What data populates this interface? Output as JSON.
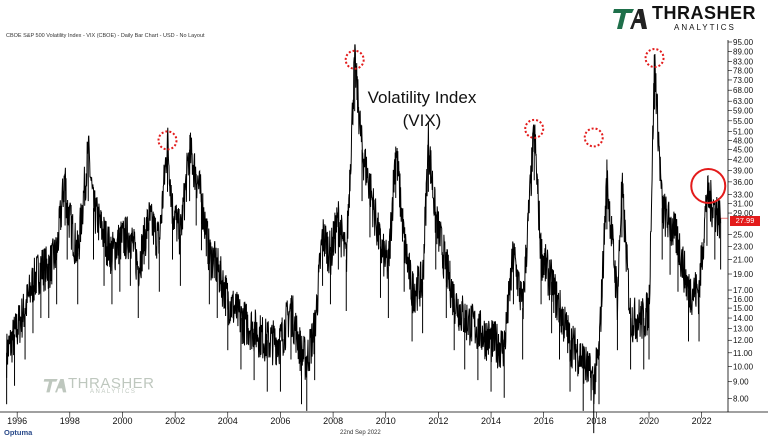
{
  "header": {
    "text": "CBOE S&P 500 Volatility Index - VIX (CBOE) - Daily Bar Chart - USD - No Layout"
  },
  "logo": {
    "word": "THRASHER",
    "sub": "ANALYTICS"
  },
  "watermark": {
    "word": "THRASHER",
    "sub": "ANALYTICS"
  },
  "footer": {
    "date": "22nd Sep 2022",
    "brand": "Optuma"
  },
  "last_value_label": "27.99",
  "chart_data": {
    "type": "line",
    "title": "Volatility Index",
    "subtitle": "(VIX)",
    "y_scale": "log",
    "ylim": [
      7.5,
      95
    ],
    "xlim": [
      1995.5,
      2023.0
    ],
    "y_ticks": [
      "95.00",
      "89.00",
      "83.00",
      "78.00",
      "73.00",
      "68.00",
      "63.00",
      "59.00",
      "55.00",
      "51.00",
      "48.00",
      "45.00",
      "42.00",
      "39.00",
      "36.00",
      "33.00",
      "31.00",
      "29.00",
      "25.00",
      "23.00",
      "21.00",
      "19.00",
      "17.00",
      "16.00",
      "15.00",
      "14.00",
      "13.00",
      "12.00",
      "11.00",
      "10.00",
      "9.00",
      "8.00"
    ],
    "x_ticks": [
      "1996",
      "1998",
      "2000",
      "2002",
      "2004",
      "2006",
      "2008",
      "2010",
      "2012",
      "2014",
      "2016",
      "2018",
      "2020",
      "2022"
    ],
    "series": [
      {
        "x": [
          1995.6,
          1995.9,
          1996.3,
          1996.6,
          1996.9,
          1997.2,
          1997.5,
          1997.82,
          1997.9,
          1998.3,
          1998.7,
          1998.9,
          1999.3,
          1999.6,
          1999.9,
          2000.3,
          2000.6,
          2001.0,
          2001.4,
          2001.71,
          2001.9,
          2002.2,
          2002.55,
          2002.8,
          2003.0,
          2003.3,
          2003.6,
          2004.0,
          2004.5,
          2005.0,
          2005.5,
          2006.0,
          2006.4,
          2006.8,
          2007.0,
          2007.3,
          2007.6,
          2007.9,
          2008.2,
          2008.5,
          2008.82,
          2009.1,
          2009.4,
          2009.8,
          2010.1,
          2010.38,
          2010.7,
          2011.0,
          2011.4,
          2011.62,
          2011.9,
          2012.3,
          2012.6,
          2013.0,
          2013.5,
          2014.0,
          2014.5,
          2014.85,
          2015.2,
          2015.64,
          2015.9,
          2016.3,
          2016.6,
          2017.0,
          2017.5,
          2017.9,
          2018.1,
          2018.4,
          2018.8,
          2018.97,
          2019.3,
          2019.8,
          2020.0,
          2020.21,
          2020.5,
          2020.8,
          2021.1,
          2021.5,
          2021.9,
          2022.2,
          2022.5,
          2022.72
        ],
        "y": [
          11,
          12.5,
          15,
          18,
          20,
          20,
          22,
          38,
          30,
          22,
          45,
          30,
          25,
          22,
          24,
          25,
          20,
          28,
          24,
          48,
          30,
          25,
          45,
          38,
          32,
          22,
          20,
          16,
          14,
          13,
          12,
          12,
          15,
          11,
          10.5,
          13,
          25,
          22,
          28,
          21,
          84,
          45,
          35,
          23,
          20,
          46,
          24,
          17,
          18,
          48,
          28,
          20,
          16,
          14,
          13,
          12,
          11.5,
          22,
          15,
          52,
          22,
          18,
          15,
          12,
          10.5,
          9,
          11,
          37,
          16,
          35,
          14,
          14,
          15,
          85,
          30,
          27,
          24,
          17,
          17,
          33,
          30,
          28
        ]
      }
    ],
    "annotations": [
      "peak-circle-2002",
      "peak-circle-2008",
      "peak-circle-2015",
      "peak-circle-2018",
      "peak-circle-2020",
      "circle-2022"
    ]
  }
}
